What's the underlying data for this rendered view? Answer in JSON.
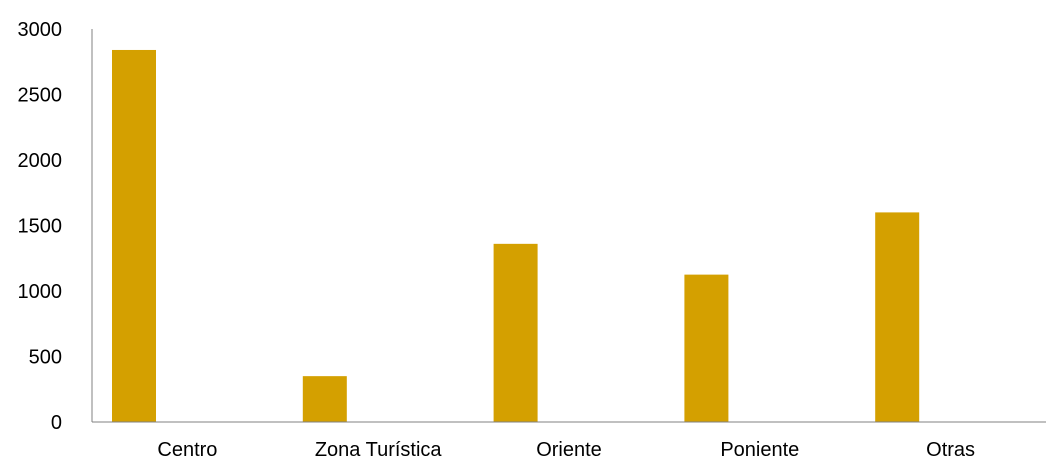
{
  "chart_data": {
    "type": "bar",
    "categories": [
      "Centro",
      "Zona Turística",
      "Oriente",
      "Poniente",
      "Otras"
    ],
    "values": [
      2840,
      350,
      1360,
      1125,
      1600
    ],
    "yticks": [
      "0",
      "500",
      "1000",
      "1500",
      "2000",
      "2500",
      "3000"
    ],
    "ylim": [
      0,
      3000
    ],
    "title": "",
    "xlabel": "",
    "ylabel": "",
    "grid": false,
    "legend": "none",
    "colors": {
      "bar": "#D4A000",
      "axis": "#808080",
      "text": "#000000"
    }
  }
}
